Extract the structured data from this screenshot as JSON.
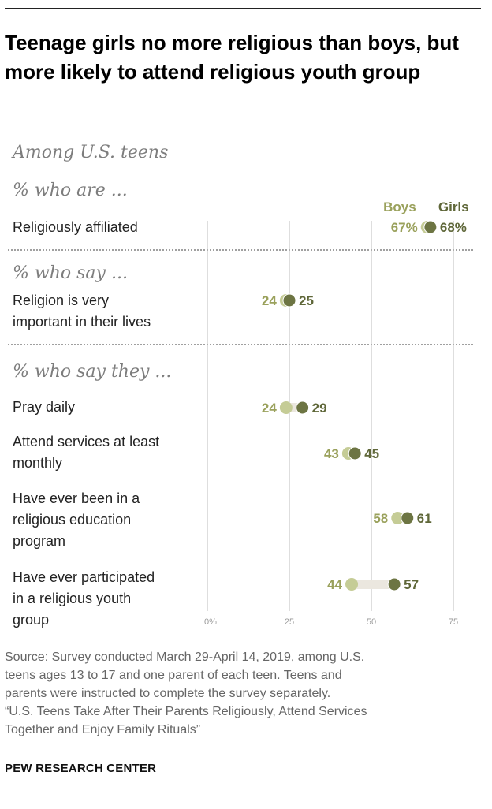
{
  "header": {
    "title": "Teenage girls no more religious than boys, but more likely to attend religious youth group",
    "subtitle": "Among U.S. teens"
  },
  "sections": {
    "who_are": "% who are ...",
    "who_say": "% who say ...",
    "who_say_they": "% who say they ..."
  },
  "row_labels": {
    "affiliated": [
      "Religiously affiliated"
    ],
    "important": [
      "Religion is very",
      "important in their lives"
    ],
    "pray": [
      "Pray daily"
    ],
    "services": [
      "Attend services at least",
      "monthly"
    ],
    "education": [
      "Have ever been in a",
      "religious education",
      "program"
    ],
    "youth": [
      "Have ever participated",
      "in a religious youth",
      "group"
    ]
  },
  "colors": {
    "boys": "#c5cc96",
    "girls": "#6d7543",
    "boys_text": "#9aa15c",
    "girls_text": "#5f6739",
    "gridline": "#bdbdbd",
    "connector": "#ebe7df"
  },
  "chart_data": {
    "type": "dot",
    "title": "Teenage girls no more religious than boys, but more likely to attend religious youth group",
    "categories": [
      "Religiously affiliated",
      "Religion is very important in their lives",
      "Pray daily",
      "Attend services at least monthly",
      "Have ever been in a religious education program",
      "Have ever participated in a religious youth group"
    ],
    "series": [
      {
        "name": "Boys",
        "values": [
          67,
          24,
          24,
          43,
          58,
          44
        ],
        "labels": [
          "67%",
          "24",
          "24",
          "43",
          "58",
          "44"
        ]
      },
      {
        "name": "Girls",
        "values": [
          68,
          25,
          29,
          45,
          61,
          57
        ],
        "labels": [
          "68%",
          "25",
          "29",
          "45",
          "61",
          "57"
        ]
      }
    ],
    "xlim": [
      0,
      75
    ],
    "xticks": [
      0,
      25,
      50,
      75
    ],
    "xtick_labels": [
      "0%",
      "25",
      "50",
      "75"
    ],
    "grid": true,
    "legend": "top-right"
  },
  "source": {
    "lines": [
      "Source: Survey conducted March 29-April 14, 2019, among U.S.",
      "teens ages 13 to 17 and one parent of each teen. Teens and",
      "parents were instructed to complete the survey separately.",
      "“U.S. Teens Take After Their Parents Religiously, Attend Services",
      "Together and Enjoy Family Rituals”"
    ]
  },
  "brand": "PEW RESEARCH CENTER"
}
